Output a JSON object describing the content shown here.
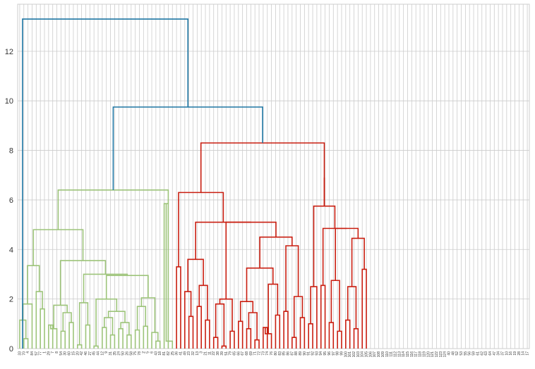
{
  "chart_data": {
    "type": "dendrogram",
    "title": "",
    "xlabel": "",
    "ylabel": "",
    "ylim": [
      0,
      13.9
    ],
    "yticks": [
      0,
      2,
      4,
      6,
      8,
      10,
      12
    ],
    "grid": true,
    "leaf_count": 124,
    "colors": {
      "green_cluster": "#9dc47a",
      "red_cluster": "#c91e10",
      "blue_root": "#1f77a4",
      "grid": "#cccccc",
      "axis_text": "#333333"
    },
    "leaves": {
      "green": [
        "33",
        "70",
        "4",
        "84",
        "57",
        "77",
        "1",
        "29",
        "7",
        "8",
        "54",
        "30",
        "60",
        "15",
        "20",
        "42",
        "46",
        "27",
        "45",
        "44",
        "12",
        "9",
        "31",
        "35",
        "24",
        "50",
        "26",
        "58",
        "75",
        "78",
        "2",
        "5",
        "6",
        "43",
        "18",
        "81",
        "82",
        "25",
        "36",
        "41",
        "49",
        "23",
        "32",
        "13",
        "3",
        "21",
        "11",
        "22",
        "38",
        "39",
        "51",
        "79"
      ],
      "red": [
        "65",
        "66",
        "67",
        "68",
        "69",
        "71",
        "72",
        "73",
        "74",
        "76",
        "80",
        "83",
        "85",
        "86",
        "87",
        "88",
        "89",
        "90",
        "91",
        "92",
        "93",
        "94",
        "95",
        "96",
        "97",
        "98",
        "99",
        "100",
        "101",
        "102",
        "103",
        "104",
        "105",
        "106",
        "107",
        "108",
        "109",
        "110",
        "111",
        "112",
        "113",
        "114",
        "115",
        "116",
        "117",
        "118",
        "119",
        "120",
        "121",
        "122",
        "123",
        "124"
      ],
      "red_tail": [
        "40",
        "48",
        "52",
        "53",
        "55",
        "56",
        "59",
        "61",
        "62",
        "63",
        "64",
        "47",
        "34",
        "37",
        "10",
        "16",
        "19",
        "28",
        "14",
        "17"
      ]
    },
    "merges": {
      "root": 13.3,
      "second": 9.75,
      "red_top": 8.3,
      "green_top": 6.4,
      "red_left_top": 6.3,
      "red_right_top": 6.9
    }
  }
}
